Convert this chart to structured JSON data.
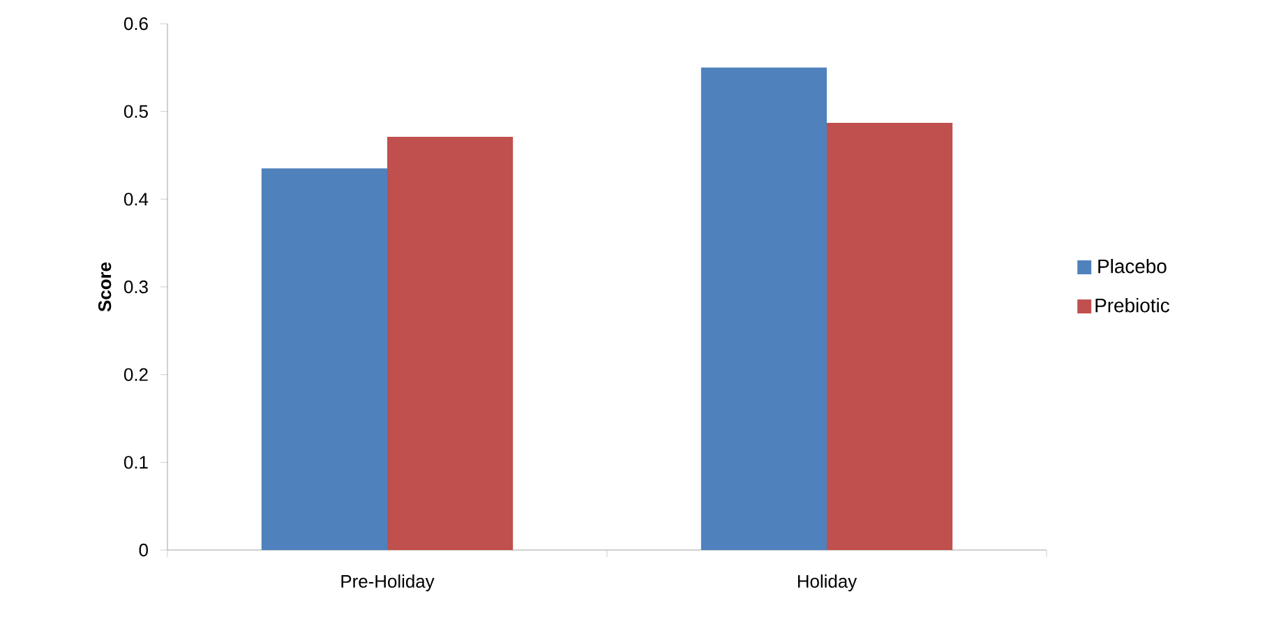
{
  "chart_data": {
    "type": "bar",
    "ylabel": "Score",
    "categories": [
      "Pre-Holiday",
      "Holiday"
    ],
    "series": [
      {
        "name": "Placebo",
        "color": "#4f81bd",
        "values": [
          0.435,
          0.55
        ]
      },
      {
        "name": "Prebiotic",
        "color": "#c0504d",
        "values": [
          0.471,
          0.487
        ]
      }
    ],
    "ylim": [
      0,
      0.6
    ],
    "yticks": [
      0,
      0.1,
      0.2,
      0.3,
      0.4,
      0.5,
      0.6
    ],
    "grid": false,
    "legend": "right"
  }
}
